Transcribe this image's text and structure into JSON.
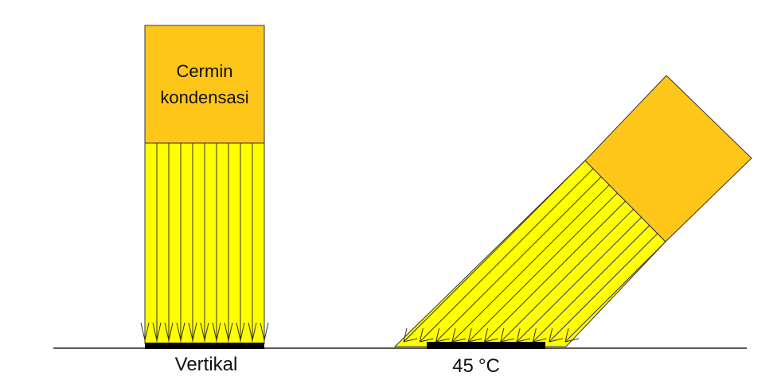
{
  "diagram": {
    "mirror_label_line1": "Cermin",
    "mirror_label_line2": "kondensasi",
    "left_caption": "Vertikal",
    "right_caption_value": "45",
    "right_caption_unit": "°C",
    "colors": {
      "mirror": "#FFC61A",
      "light_beam": "#FFFF00",
      "ray_line": "#333333",
      "sample_plate": "#000000",
      "ground_line": "#222222"
    }
  }
}
